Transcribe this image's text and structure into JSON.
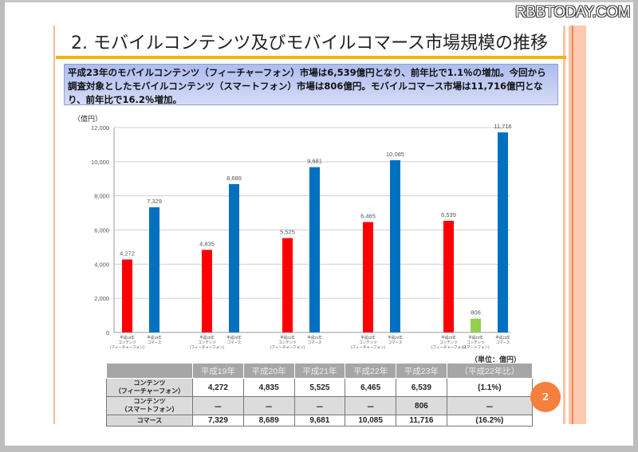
{
  "watermark": "RBBTODAY.COM",
  "slide": {
    "title": "2. モバイルコンテンツ及びモバイルコマース市場規模の推移",
    "summary": "平成23年のモバイルコンテンツ（フィーチャーフォン）市場は6,539億円となり、前年比で1.1％の増加。今回から調査対象としたモバイルコンテンツ（スマートフォン）市場は806億円。モバイルコマース市場は11,716億円となり、前年比で16.2％増加。",
    "page_number": "2",
    "unit_note": "（単位：億円）"
  },
  "colors": {
    "feature_phone": "#ff0000",
    "smartphone": "#92d050",
    "commerce": "#0070c0",
    "accent_rule": "#f5b400",
    "page_badge": "#f57f3c"
  },
  "chart_data": {
    "type": "bar",
    "title": "",
    "ylabel": "（億円）",
    "xlabel": "",
    "ylim": [
      0,
      12000
    ],
    "yticks": [
      0,
      2000,
      4000,
      6000,
      8000,
      10000,
      12000
    ],
    "ytick_labels": [
      "0",
      "2,000",
      "4,000",
      "6,000",
      "8,000",
      "10,000",
      "12,000"
    ],
    "grid": true,
    "groups": [
      {
        "year": "平成19年",
        "bars": [
          {
            "series": "feature_phone",
            "label_lines": [
              "平成19年",
              "コンテンツ",
              "(フィーチャーフォン)"
            ],
            "value": 4272,
            "value_label": "4,272"
          },
          {
            "series": "commerce",
            "label_lines": [
              "平成19年",
              "コマース"
            ],
            "value": 7329,
            "value_label": "7,329"
          }
        ]
      },
      {
        "year": "平成20年",
        "bars": [
          {
            "series": "feature_phone",
            "label_lines": [
              "平成20年",
              "コンテンツ",
              "(フィーチャーフォン)"
            ],
            "value": 4835,
            "value_label": "4,835"
          },
          {
            "series": "commerce",
            "label_lines": [
              "平成20年",
              "コマース"
            ],
            "value": 8689,
            "value_label": "8,689"
          }
        ]
      },
      {
        "year": "平成21年",
        "bars": [
          {
            "series": "feature_phone",
            "label_lines": [
              "平成21年",
              "コンテンツ",
              "(フィーチャーフォン)"
            ],
            "value": 5525,
            "value_label": "5,525"
          },
          {
            "series": "commerce",
            "label_lines": [
              "平成21年",
              "コマース"
            ],
            "value": 9681,
            "value_label": "9,681"
          }
        ]
      },
      {
        "year": "平成22年",
        "bars": [
          {
            "series": "feature_phone",
            "label_lines": [
              "平成22年",
              "コンテンツ",
              "(フィーチャーフォン)"
            ],
            "value": 6465,
            "value_label": "6,465"
          },
          {
            "series": "commerce",
            "label_lines": [
              "平成22年",
              "コマース"
            ],
            "value": 10085,
            "value_label": "10,085"
          }
        ]
      },
      {
        "year": "平成23年",
        "bars": [
          {
            "series": "feature_phone",
            "label_lines": [
              "平成23年",
              "コンテンツ",
              "(フィーチャーフォン)"
            ],
            "value": 6539,
            "value_label": "6,539"
          },
          {
            "series": "smartphone",
            "label_lines": [
              "平成23年",
              "コンテンツ",
              "(スマートフォン)"
            ],
            "value": 806,
            "value_label": "806"
          },
          {
            "series": "commerce",
            "label_lines": [
              "平成23年",
              "コマース"
            ],
            "value": 11716,
            "value_label": "11,716"
          }
        ]
      }
    ]
  },
  "table": {
    "headers": [
      "",
      "平成19年",
      "平成20年",
      "平成21年",
      "平成22年",
      "平成23年",
      "（平成22年比）"
    ],
    "rows": [
      {
        "label_lines": [
          "コンテンツ",
          "（フィーチャーフォン）"
        ],
        "cells": [
          "4,272",
          "4,835",
          "5,525",
          "6,465",
          "6,539",
          "(1.1%)"
        ]
      },
      {
        "label_lines": [
          "コンテンツ",
          "（スマートフォン）"
        ],
        "cells": [
          "－",
          "－",
          "－",
          "－",
          "806",
          "－"
        ]
      },
      {
        "label_lines": [
          "コマース"
        ],
        "cells": [
          "7,329",
          "8,689",
          "9,681",
          "10,085",
          "11,716",
          "(16.2%)"
        ]
      }
    ]
  }
}
